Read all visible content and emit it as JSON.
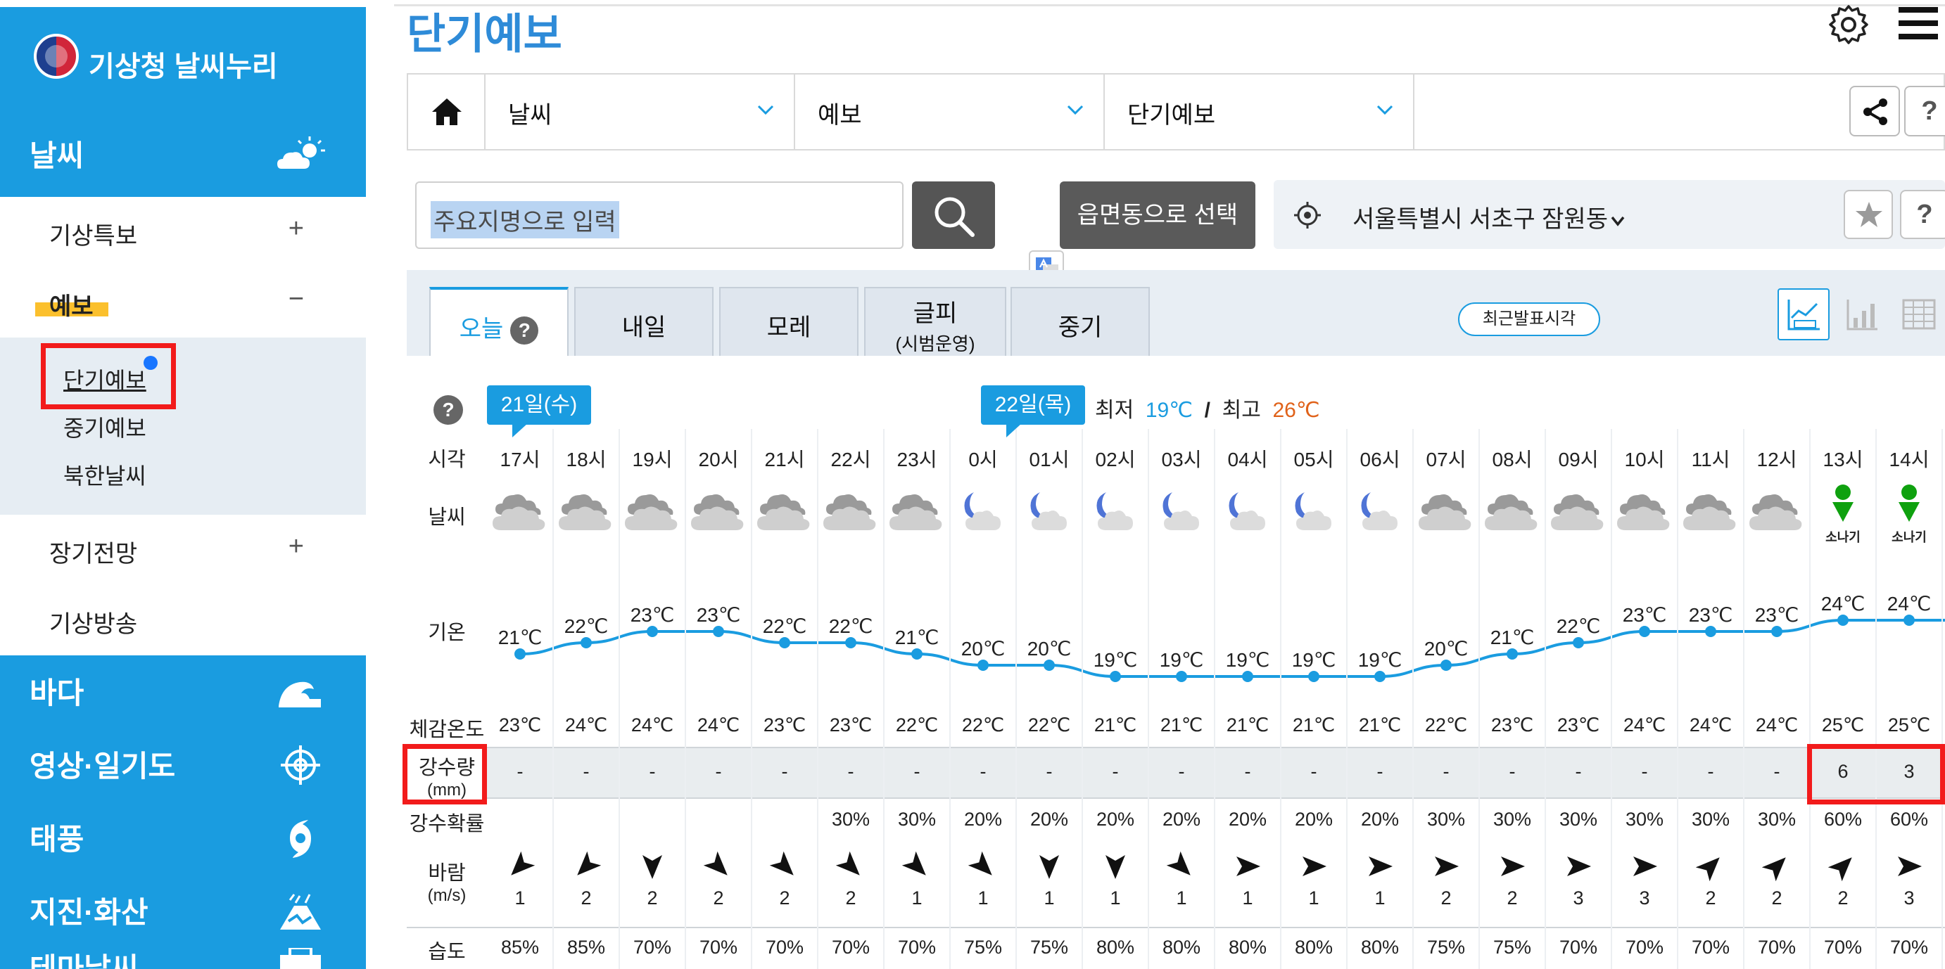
{
  "sidebar": {
    "brand": "기상청 날씨누리",
    "weather_header": "날씨",
    "sub1": "기상특보",
    "sub1_toggle": "+",
    "sub2": "예보",
    "sub2_toggle": "−",
    "items": [
      "단기예보",
      "중기예보",
      "북한날씨"
    ],
    "sub3": "장기전망",
    "sub3_toggle": "+",
    "sub4": "기상방송",
    "sections": [
      "바다",
      "영상·일기도",
      "태풍",
      "지진·화산",
      "테마날씨"
    ]
  },
  "header": {
    "title": "단기예보"
  },
  "breadcrumb": [
    "날씨",
    "예보",
    "단기예보"
  ],
  "search": {
    "placeholder": "주요지명으로 입력",
    "dong_button": "읍면동으로 선택"
  },
  "location": {
    "name": "서울특별시 서초구 잠원동"
  },
  "help_label": "?",
  "tabs": [
    {
      "label": "오늘"
    },
    {
      "label": "내일"
    },
    {
      "label": "모레"
    },
    {
      "label": "글피",
      "sub": "(시범운영)"
    },
    {
      "label": "중기"
    }
  ],
  "recent_button": "최근발표시각",
  "forecast": {
    "day1": "21일(수)",
    "day2": "22일(목)",
    "min_label": "최저",
    "min": "19℃",
    "slash": "/",
    "max_label": "최고",
    "max": "26℃",
    "labels": {
      "time": "시각",
      "weather": "날씨",
      "temp": "기온",
      "feels": "체감온도",
      "precip1": "강수량",
      "precip2": "(mm)",
      "pop": "강수확률",
      "wind1": "바람",
      "wind2": "(m/s)",
      "humidity": "습도"
    },
    "hours": [
      "17시",
      "18시",
      "19시",
      "20시",
      "21시",
      "22시",
      "23시",
      "0시",
      "01시",
      "02시",
      "03시",
      "04시",
      "05시",
      "06시",
      "07시",
      "08시",
      "09시",
      "10시",
      "11시",
      "12시",
      "13시",
      "14시"
    ],
    "weather_icons": [
      "cloudy",
      "cloudy",
      "cloudy",
      "cloudy",
      "cloudy",
      "cloudy",
      "cloudy",
      "partly-cloudy-night",
      "partly-cloudy-night",
      "partly-cloudy-night",
      "partly-cloudy-night",
      "partly-cloudy-night",
      "partly-cloudy-night",
      "partly-cloudy-night",
      "cloudy",
      "cloudy",
      "cloudy",
      "cloudy",
      "cloudy",
      "cloudy",
      "shower",
      "shower"
    ],
    "shower_label": "소나기",
    "temps": [
      21,
      22,
      23,
      23,
      22,
      22,
      21,
      20,
      20,
      19,
      19,
      19,
      19,
      19,
      20,
      21,
      22,
      23,
      23,
      23,
      24,
      24
    ],
    "temp_unit": "℃",
    "feels": [
      "23℃",
      "24℃",
      "24℃",
      "24℃",
      "23℃",
      "23℃",
      "22℃",
      "22℃",
      "22℃",
      "21℃",
      "21℃",
      "21℃",
      "21℃",
      "21℃",
      "22℃",
      "23℃",
      "23℃",
      "24℃",
      "24℃",
      "24℃",
      "25℃",
      "25℃"
    ],
    "precip": [
      "-",
      "-",
      "-",
      "-",
      "-",
      "-",
      "-",
      "-",
      "-",
      "-",
      "-",
      "-",
      "-",
      "-",
      "-",
      "-",
      "-",
      "-",
      "-",
      "-",
      "6",
      "3"
    ],
    "pop": [
      "",
      "",
      "",
      "",
      "",
      "30%",
      "30%",
      "20%",
      "20%",
      "20%",
      "20%",
      "20%",
      "20%",
      "20%",
      "30%",
      "30%",
      "30%",
      "30%",
      "30%",
      "30%",
      "60%",
      "60%"
    ],
    "wind_dir_deg": [
      45,
      45,
      0,
      315,
      315,
      315,
      315,
      315,
      0,
      0,
      315,
      270,
      270,
      270,
      270,
      270,
      270,
      270,
      225,
      225,
      225,
      270
    ],
    "wind_speed": [
      "1",
      "2",
      "2",
      "2",
      "2",
      "2",
      "1",
      "1",
      "1",
      "1",
      "1",
      "1",
      "1",
      "1",
      "2",
      "2",
      "3",
      "3",
      "2",
      "2",
      "2",
      "3"
    ],
    "humidity": [
      "85%",
      "85%",
      "70%",
      "70%",
      "70%",
      "70%",
      "70%",
      "75%",
      "75%",
      "80%",
      "80%",
      "80%",
      "80%",
      "80%",
      "75%",
      "75%",
      "70%",
      "70%",
      "70%",
      "70%",
      "70%",
      "70%"
    ]
  },
  "colors": {
    "primary": "#1a9ce0",
    "min_temp": "#1a9ce0",
    "max_temp": "#e0621a",
    "annotation": "#f21b1b"
  }
}
